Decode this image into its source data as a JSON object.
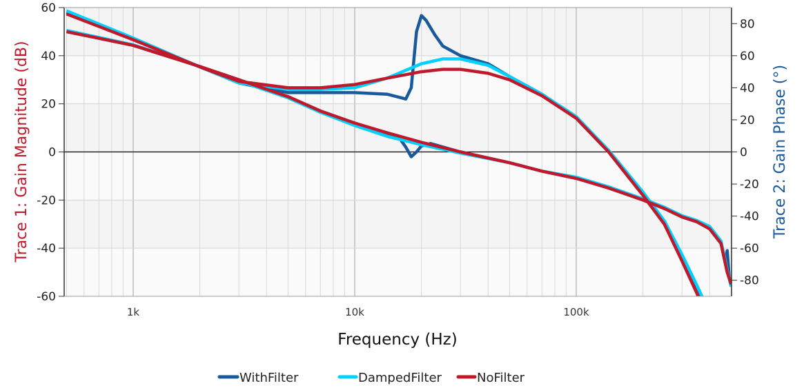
{
  "chart_data": {
    "type": "line",
    "xlabel": "Frequency (Hz)",
    "ylabel_left": "Trace 1: Gain Magnitude (dB)",
    "ylabel_right": "Trace 2: Gain Phase (°)",
    "xscale": "log",
    "xlim": [
      500,
      500000
    ],
    "ylim_left": [
      -60,
      60
    ],
    "ylim_right": [
      -90,
      90
    ],
    "x_ticks": [
      {
        "value": 1000,
        "label": "1k"
      },
      {
        "value": 10000,
        "label": "10k"
      },
      {
        "value": 100000,
        "label": "100k"
      }
    ],
    "y_ticks_left": [
      "60",
      "40",
      "20",
      "0",
      "-20",
      "-40",
      "-60"
    ],
    "y_ticks_right": [
      "80",
      "60",
      "40",
      "20",
      "0",
      "-20",
      "-40",
      "-60",
      "-80"
    ],
    "grid": true,
    "legend_position": "bottom",
    "colors": {
      "left_axis_label": "#c0192b",
      "right_axis_label": "#1a5a9a"
    },
    "series": [
      {
        "name": "WithFilter",
        "color": "#1a5a9a",
        "magnitude_db": [
          [
            500,
            50
          ],
          [
            1000,
            44.3
          ],
          [
            2000,
            35.5
          ],
          [
            3000,
            30
          ],
          [
            5000,
            23
          ],
          [
            7000,
            17
          ],
          [
            10000,
            12
          ],
          [
            14000,
            7.5
          ],
          [
            16000,
            5.5
          ],
          [
            17000,
            2
          ],
          [
            18000,
            -2
          ],
          [
            19000,
            0
          ],
          [
            20000,
            2.5
          ],
          [
            22000,
            3.5
          ],
          [
            30000,
            0
          ],
          [
            50000,
            -4.5
          ],
          [
            70000,
            -8
          ],
          [
            100000,
            -11
          ],
          [
            140000,
            -15
          ],
          [
            200000,
            -20
          ],
          [
            250000,
            -23.5
          ],
          [
            300000,
            -27
          ],
          [
            350000,
            -29
          ],
          [
            400000,
            -32
          ],
          [
            450000,
            -38
          ],
          [
            470000,
            -46
          ],
          [
            480000,
            -41
          ],
          [
            490000,
            -52
          ],
          [
            500000,
            -55
          ]
        ],
        "phase_deg": [
          [
            500,
            87
          ],
          [
            1000,
            70
          ],
          [
            2000,
            53
          ],
          [
            3000,
            43
          ],
          [
            5000,
            37
          ],
          [
            7000,
            37
          ],
          [
            10000,
            37
          ],
          [
            14000,
            36
          ],
          [
            16000,
            34
          ],
          [
            17000,
            33
          ],
          [
            18000,
            40
          ],
          [
            19000,
            75
          ],
          [
            20000,
            85
          ],
          [
            21000,
            82
          ],
          [
            23000,
            73
          ],
          [
            25000,
            66
          ],
          [
            30000,
            60
          ],
          [
            40000,
            55
          ],
          [
            50000,
            47
          ],
          [
            70000,
            36
          ],
          [
            100000,
            21
          ],
          [
            140000,
            0
          ],
          [
            200000,
            -27
          ],
          [
            250000,
            -45
          ],
          [
            300000,
            -67
          ],
          [
            350000,
            -87
          ],
          [
            365000,
            -92
          ]
        ]
      },
      {
        "name": "DampedFilter",
        "color": "#00d2ff",
        "magnitude_db": [
          [
            500,
            50.5
          ],
          [
            1000,
            44.5
          ],
          [
            2000,
            35.5
          ],
          [
            3000,
            29.5
          ],
          [
            5000,
            22.5
          ],
          [
            7000,
            16.5
          ],
          [
            10000,
            11
          ],
          [
            14000,
            6.5
          ],
          [
            20000,
            3
          ],
          [
            30000,
            -0.5
          ],
          [
            50000,
            -4.5
          ],
          [
            70000,
            -8
          ],
          [
            100000,
            -10.5
          ],
          [
            140000,
            -14.5
          ],
          [
            200000,
            -19.5
          ],
          [
            250000,
            -23
          ],
          [
            300000,
            -26.5
          ],
          [
            350000,
            -28.5
          ],
          [
            400000,
            -31
          ],
          [
            450000,
            -37
          ],
          [
            480000,
            -49
          ],
          [
            500000,
            -56
          ]
        ],
        "phase_deg": [
          [
            500,
            88
          ],
          [
            1000,
            71
          ],
          [
            2000,
            53
          ],
          [
            3000,
            43
          ],
          [
            5000,
            39
          ],
          [
            7000,
            39
          ],
          [
            10000,
            40
          ],
          [
            14000,
            46
          ],
          [
            20000,
            55
          ],
          [
            25000,
            58
          ],
          [
            30000,
            58
          ],
          [
            40000,
            54
          ],
          [
            50000,
            47
          ],
          [
            70000,
            36
          ],
          [
            100000,
            22
          ],
          [
            140000,
            1
          ],
          [
            200000,
            -25
          ],
          [
            250000,
            -43
          ],
          [
            300000,
            -64
          ],
          [
            350000,
            -83
          ],
          [
            375000,
            -92
          ]
        ]
      },
      {
        "name": "NoFilter",
        "color": "#c0192b",
        "magnitude_db": [
          [
            500,
            50
          ],
          [
            1000,
            44.3
          ],
          [
            2000,
            35.5
          ],
          [
            3000,
            30
          ],
          [
            5000,
            23
          ],
          [
            7000,
            17
          ],
          [
            10000,
            12
          ],
          [
            14000,
            8
          ],
          [
            20000,
            4
          ],
          [
            30000,
            0
          ],
          [
            50000,
            -4.5
          ],
          [
            70000,
            -8
          ],
          [
            100000,
            -11
          ],
          [
            140000,
            -15
          ],
          [
            200000,
            -20
          ],
          [
            250000,
            -23.5
          ],
          [
            300000,
            -27
          ],
          [
            350000,
            -29
          ],
          [
            400000,
            -32
          ],
          [
            450000,
            -38
          ],
          [
            480000,
            -50
          ],
          [
            500000,
            -55
          ]
        ],
        "phase_deg": [
          [
            500,
            86
          ],
          [
            1000,
            70
          ],
          [
            2000,
            53
          ],
          [
            3000,
            44
          ],
          [
            5000,
            40
          ],
          [
            7000,
            40
          ],
          [
            10000,
            42
          ],
          [
            14000,
            46
          ],
          [
            20000,
            50
          ],
          [
            25000,
            51.5
          ],
          [
            30000,
            51.5
          ],
          [
            40000,
            49
          ],
          [
            50000,
            45
          ],
          [
            70000,
            35
          ],
          [
            100000,
            21
          ],
          [
            140000,
            0
          ],
          [
            200000,
            -27
          ],
          [
            250000,
            -45
          ],
          [
            300000,
            -68
          ],
          [
            350000,
            -88
          ],
          [
            360000,
            -92
          ]
        ]
      }
    ]
  }
}
